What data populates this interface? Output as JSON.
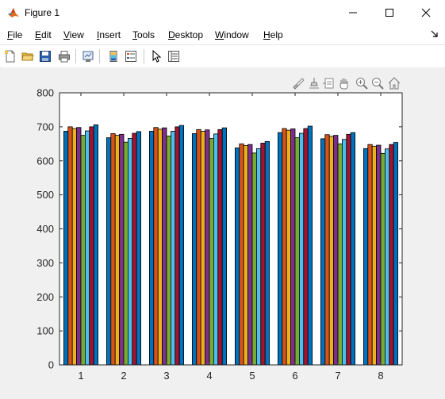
{
  "window": {
    "title": "Figure 1"
  },
  "menu": {
    "items": [
      {
        "key": "F",
        "rest": "ile"
      },
      {
        "key": "E",
        "rest": "dit"
      },
      {
        "key": "V",
        "rest": "iew"
      },
      {
        "key": "I",
        "rest": "nsert"
      },
      {
        "key": "T",
        "rest": "ools"
      },
      {
        "key": "D",
        "rest": "esktop"
      },
      {
        "key": "W",
        "rest": "indow"
      },
      {
        "key": "H",
        "rest": "elp"
      }
    ]
  },
  "toolbar": {
    "icons": [
      "new-figure-icon",
      "open-file-icon",
      "save-icon",
      "print-icon",
      "link-plot-icon",
      "insert-colorbar-icon",
      "insert-legend-icon",
      "edit-plot-icon",
      "property-inspector-icon"
    ]
  },
  "axes_toolbar": {
    "icons": [
      "brush-icon",
      "data-tips-icon",
      "export-icon",
      "pan-icon",
      "zoom-in-icon",
      "zoom-out-icon",
      "home-icon"
    ]
  },
  "colors": {
    "series": [
      "#0072BD",
      "#D95319",
      "#EDB120",
      "#7E2F8E",
      "#77AC30",
      "#4DBEEE",
      "#A2142F",
      "#0072BD"
    ]
  },
  "chart_data": {
    "type": "bar",
    "categories": [
      "1",
      "2",
      "3",
      "4",
      "5",
      "6",
      "7",
      "8"
    ],
    "series": [
      {
        "values": [
          687,
          668,
          687,
          680,
          638,
          683,
          665,
          636
        ]
      },
      {
        "values": [
          700,
          680,
          698,
          692,
          650,
          695,
          677,
          648
        ]
      },
      {
        "values": [
          695,
          675,
          693,
          687,
          645,
          690,
          672,
          643
        ]
      },
      {
        "values": [
          698,
          678,
          697,
          691,
          648,
          694,
          675,
          646
        ]
      },
      {
        "values": [
          675,
          655,
          673,
          666,
          623,
          668,
          650,
          622
        ]
      },
      {
        "values": [
          688,
          666,
          687,
          679,
          636,
          681,
          663,
          635
        ]
      },
      {
        "values": [
          700,
          681,
          700,
          692,
          652,
          695,
          678,
          648
        ]
      },
      {
        "values": [
          706,
          686,
          704,
          697,
          657,
          702,
          683,
          654
        ]
      }
    ],
    "title": "",
    "xlabel": "",
    "ylabel": "",
    "ylim": [
      0,
      800
    ],
    "yticks": [
      0,
      100,
      200,
      300,
      400,
      500,
      600,
      700,
      800
    ],
    "grid": false
  }
}
